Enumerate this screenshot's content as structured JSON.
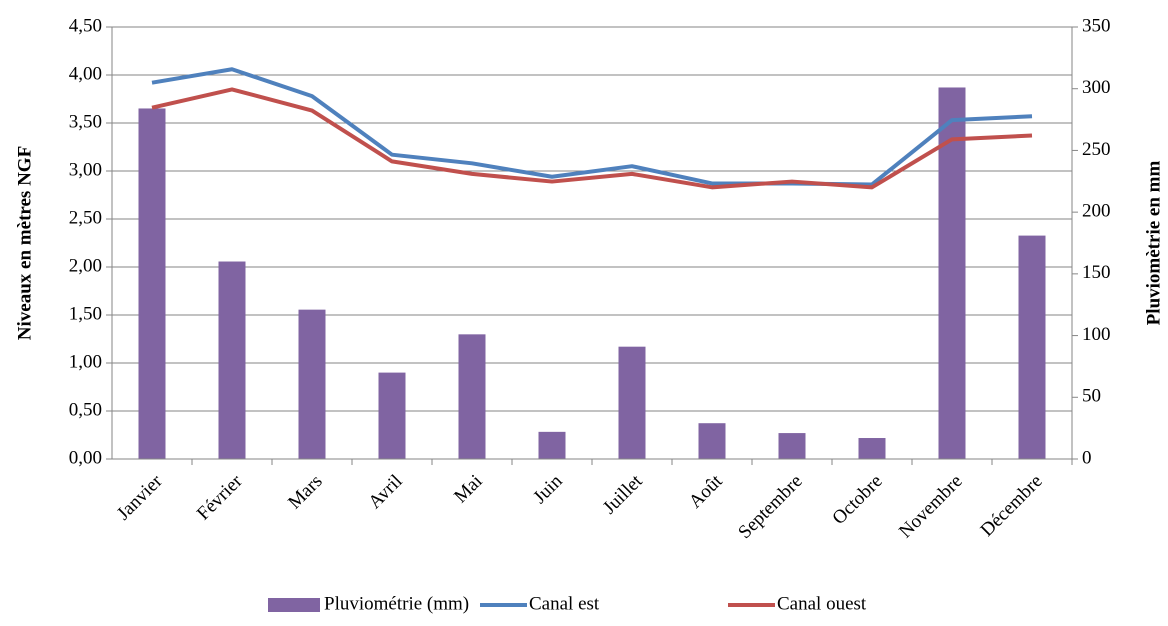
{
  "chart_data": {
    "type": "bar",
    "categories": [
      "Janvier",
      "Février",
      "Mars",
      "Avril",
      "Mai",
      "Juin",
      "Juillet",
      "Août",
      "Septembre",
      "Octobre",
      "Novembre",
      "Décembre"
    ],
    "series": [
      {
        "name": "Pluviométrie (mm)",
        "type": "bar",
        "axis": "y2",
        "color": "#8064a2",
        "values": [
          284,
          160,
          121,
          70,
          101,
          22,
          91,
          29,
          21,
          17,
          301,
          181
        ]
      },
      {
        "name": "Canal est",
        "type": "line",
        "color": "#4f81bd",
        "values": [
          3.92,
          4.06,
          3.78,
          3.17,
          3.08,
          2.94,
          3.05,
          2.87,
          2.87,
          2.86,
          3.53,
          3.57
        ]
      },
      {
        "name": "Canal ouest",
        "type": "line",
        "color": "#c0504d",
        "values": [
          3.66,
          3.85,
          3.63,
          3.1,
          2.97,
          2.89,
          2.97,
          2.83,
          2.89,
          2.83,
          3.33,
          3.37
        ]
      }
    ],
    "y_label": "Niveaux en mètres NGF",
    "y2_label": "Pluviomètrie en mm",
    "ylim": [
      0,
      4.5
    ],
    "yticks": [
      {
        "value": 0,
        "label": "0,00"
      },
      {
        "value": 0.5,
        "label": "0,50"
      },
      {
        "value": 1,
        "label": "1,00"
      },
      {
        "value": 1.5,
        "label": "1,50"
      },
      {
        "value": 2,
        "label": "2,00"
      },
      {
        "value": 2.5,
        "label": "2,50"
      },
      {
        "value": 3,
        "label": "3,00"
      },
      {
        "value": 3.5,
        "label": "3,50"
      },
      {
        "value": 4,
        "label": "4,00"
      },
      {
        "value": 4.5,
        "label": "4,50"
      }
    ],
    "y2lim": [
      0,
      350
    ],
    "y2ticks": [
      0,
      50,
      100,
      150,
      200,
      250,
      300,
      350
    ],
    "grid": true,
    "legend": "bottom"
  }
}
